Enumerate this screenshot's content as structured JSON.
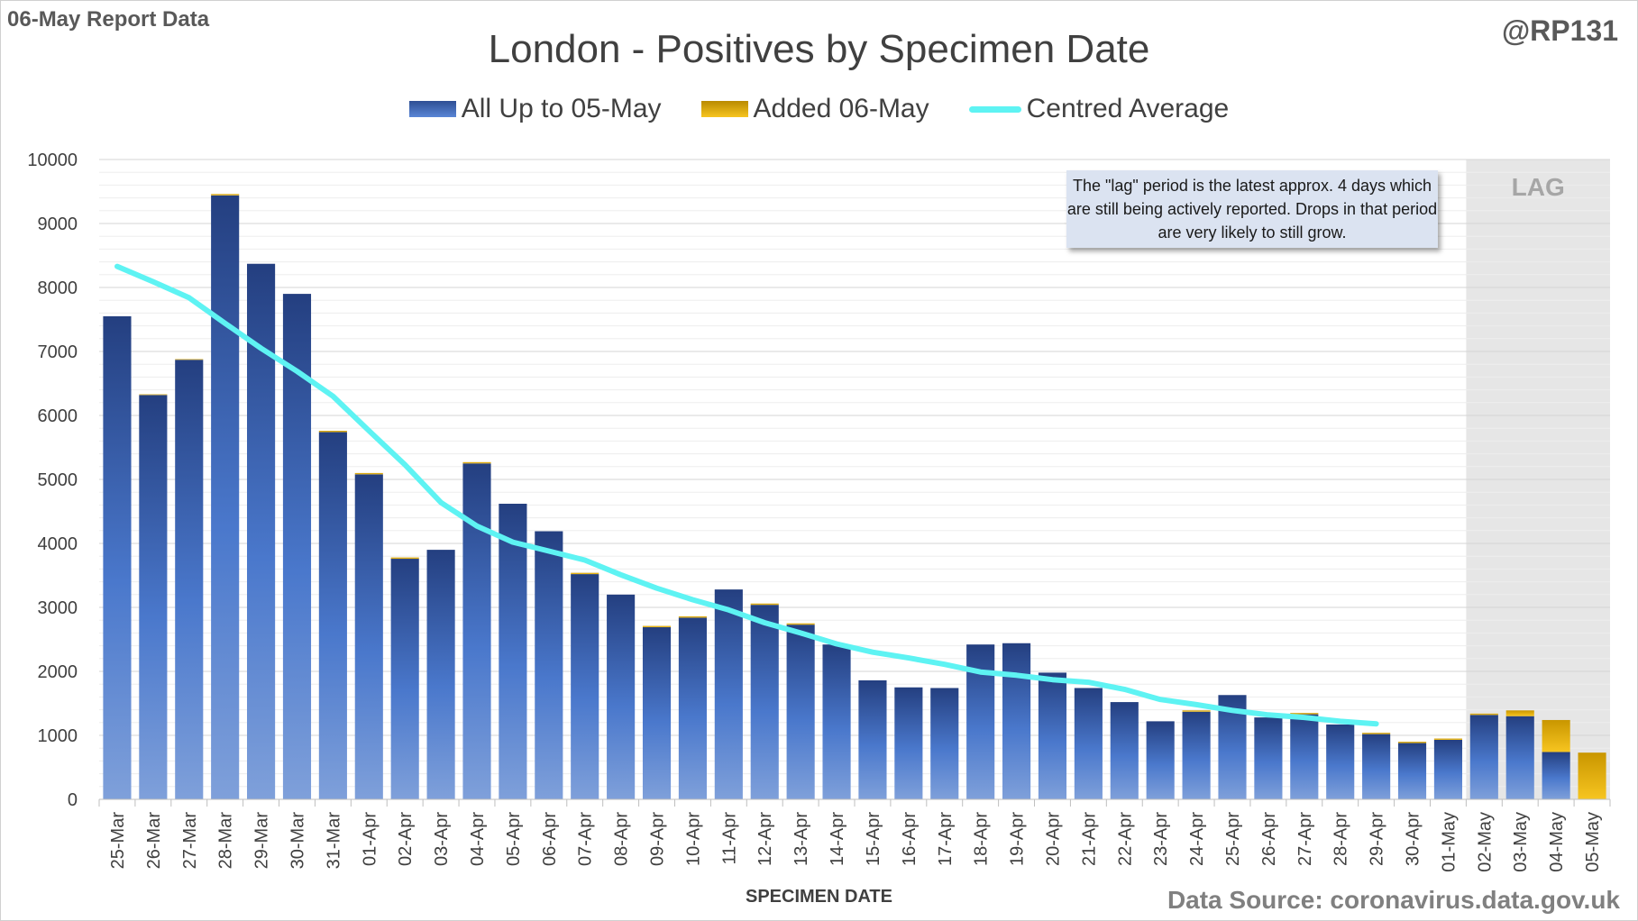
{
  "report_label": "06-May Report Data",
  "handle": "@RP131",
  "source": "Data Source: coronavirus.data.gov.uk",
  "annotation": "The \"lag\" period is the latest approx. 4 days which are still being actively reported.  Drops in that period are very likely to still grow.",
  "colors": {
    "base_series": "#2b4f9a",
    "added_series": "#f0b400",
    "average_line": "#5ef3f3",
    "lag_shading": "#e6e6e6"
  },
  "chart_data": {
    "type": "bar",
    "title": "London - Positives by Specimen Date",
    "xlabel": "SPECIMEN DATE",
    "ylabel": "",
    "ylim": [
      0,
      10000
    ],
    "yticks": [
      0,
      1000,
      2000,
      3000,
      4000,
      5000,
      6000,
      7000,
      8000,
      9000,
      10000
    ],
    "stacked": true,
    "grid": true,
    "legend_position": "top",
    "categories": [
      "25-Mar",
      "26-Mar",
      "27-Mar",
      "28-Mar",
      "29-Mar",
      "30-Mar",
      "31-Mar",
      "01-Apr",
      "02-Apr",
      "03-Apr",
      "04-Apr",
      "05-Apr",
      "06-Apr",
      "07-Apr",
      "08-Apr",
      "09-Apr",
      "10-Apr",
      "11-Apr",
      "12-Apr",
      "13-Apr",
      "14-Apr",
      "15-Apr",
      "16-Apr",
      "17-Apr",
      "18-Apr",
      "19-Apr",
      "20-Apr",
      "21-Apr",
      "22-Apr",
      "23-Apr",
      "24-Apr",
      "25-Apr",
      "26-Apr",
      "27-Apr",
      "28-Apr",
      "29-Apr",
      "30-Apr",
      "01-May",
      "02-May",
      "03-May",
      "04-May",
      "05-May"
    ],
    "series": [
      {
        "name": "All Up to 05-May",
        "values": [
          7550,
          6320,
          6870,
          9440,
          8370,
          7900,
          5740,
          5080,
          3760,
          3900,
          5250,
          4620,
          4190,
          3520,
          3200,
          2690,
          2840,
          3280,
          3040,
          2730,
          2420,
          1860,
          1750,
          1740,
          2420,
          2440,
          1980,
          1740,
          1520,
          1220,
          1370,
          1630,
          1280,
          1330,
          1170,
          1020,
          880,
          930,
          1320,
          1300,
          740,
          0
        ]
      },
      {
        "name": "Added 06-May",
        "values": [
          0,
          10,
          10,
          20,
          0,
          0,
          20,
          20,
          20,
          0,
          20,
          0,
          0,
          20,
          0,
          20,
          20,
          0,
          20,
          20,
          0,
          0,
          0,
          0,
          0,
          0,
          0,
          0,
          0,
          0,
          20,
          0,
          0,
          20,
          0,
          20,
          20,
          20,
          20,
          90,
          500,
          730
        ]
      },
      {
        "name": "Centred Average",
        "type": "line",
        "values": [
          8330,
          8090,
          7840,
          7440,
          7050,
          6690,
          6300,
          5760,
          5230,
          4640,
          4270,
          4020,
          3880,
          3740,
          3510,
          3300,
          3120,
          2960,
          2760,
          2600,
          2430,
          2300,
          2210,
          2110,
          1990,
          1940,
          1870,
          1830,
          1720,
          1560,
          1480,
          1390,
          1320,
          1280,
          1220,
          1180,
          null,
          null,
          null,
          null,
          null,
          null
        ]
      }
    ],
    "annotations": [
      "LAG"
    ],
    "lag_start_category": "02-May"
  }
}
